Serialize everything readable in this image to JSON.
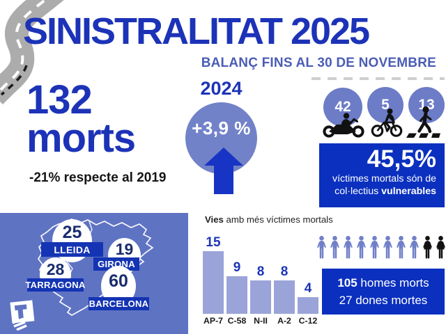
{
  "header": {
    "title": "SINISTRALITAT 2025",
    "subtitle": "BALANÇ FINS AL 30 DE NOVEMBRE"
  },
  "totals": {
    "count": "132",
    "unit": "morts",
    "comparison": "-21% respecte al 2019"
  },
  "previous_year": {
    "year": "2024",
    "change": "+3,9 %"
  },
  "vulnerable": {
    "counts": [
      {
        "icon": "motorcycle-icon",
        "value": "42"
      },
      {
        "icon": "bicycle-icon",
        "value": "5"
      },
      {
        "icon": "pedestrian-icon",
        "value": "13"
      }
    ],
    "percent": "45,5%",
    "text_line1": "víctimes mortals són de",
    "text_line2_regular": "col·lectius ",
    "text_line2_bold": "vulnerables"
  },
  "map": {
    "provinces": [
      {
        "name": "LLEIDA",
        "value": "25"
      },
      {
        "name": "GIRONA",
        "value": "19"
      },
      {
        "name": "TARRAGONA",
        "value": "28"
      },
      {
        "name": "BARCELONA",
        "value": "60"
      }
    ]
  },
  "chart_data": {
    "type": "bar",
    "title": "Vies amb més víctimes mortals",
    "title_bold": "Vies",
    "title_rest": " amb més víctimes mortals",
    "categories": [
      "AP-7",
      "C-58",
      "N-II",
      "A-2",
      "C-12"
    ],
    "values": [
      15,
      9,
      8,
      8,
      4
    ],
    "xlabel": "",
    "ylabel": "",
    "ylim": [
      0,
      15
    ],
    "value_labels": true,
    "grid": false,
    "legend": false
  },
  "gender": {
    "men_count": "105",
    "men_suffix": " homes morts",
    "women_line": "27 dones mortes",
    "male_icons": 8,
    "female_icons": 2
  },
  "colors": {
    "title_blue": "#1C33B8",
    "subtitle_blue": "#4A5CB5",
    "box_blue": "#0B30BF",
    "circle_periwinkle": "#7282C8",
    "panel_blue": "#5F73C3",
    "bar_periwinkle": "#9AA4D8",
    "pin_number_navy": "#1A2C6E",
    "male_icon_blue": "#7080C8",
    "female_icon_black": "#121212",
    "arrow_blue": "#1734C4"
  }
}
